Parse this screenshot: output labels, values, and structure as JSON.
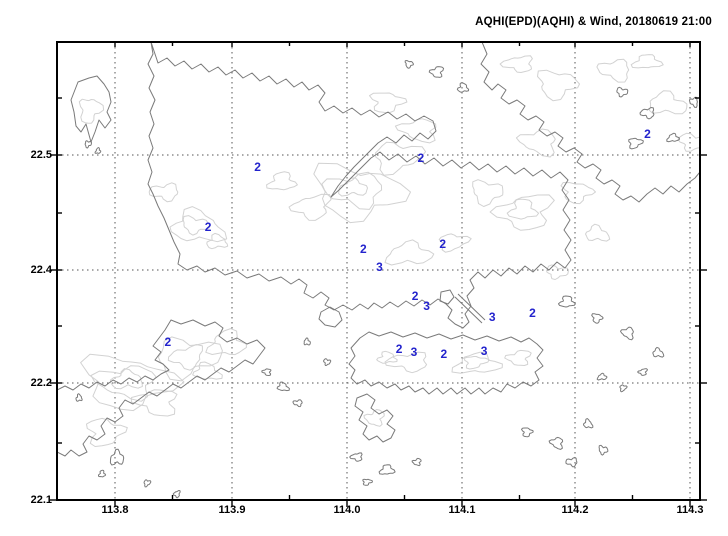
{
  "window": {
    "title": "AQHI(EPD)(AQHI) & Wind, 20180619 21:00"
  },
  "chart_data": {
    "type": "map-contour",
    "title": "AQHI(EPD)(AQHI) & Wind, 20180619 21:00",
    "region": "Hong Kong coastline with terrain contours",
    "datetime_shown": "20180619 21:00",
    "x_axis": {
      "tick_labels": [
        "113.8",
        "113.9",
        "114.0",
        "114.1",
        "114.2",
        "114.3"
      ],
      "range_deg": [
        113.75,
        114.31
      ]
    },
    "y_axis": {
      "tick_labels": [
        "22.5",
        "22.4",
        "22.2",
        "22.1"
      ],
      "range_deg": [
        22.1,
        22.6
      ]
    },
    "grid": "dotted",
    "legend": "none",
    "stations": [
      {
        "lon": 113.924,
        "lat": 22.49,
        "aqhi": "2"
      },
      {
        "lon": 114.066,
        "lat": 22.497,
        "aqhi": "2"
      },
      {
        "lon": 114.263,
        "lat": 22.518,
        "aqhi": "2"
      },
      {
        "lon": 113.881,
        "lat": 22.437,
        "aqhi": "2"
      },
      {
        "lon": 114.016,
        "lat": 22.418,
        "aqhi": "2"
      },
      {
        "lon": 114.03,
        "lat": 22.403,
        "aqhi": "3"
      },
      {
        "lon": 114.085,
        "lat": 22.423,
        "aqhi": "2"
      },
      {
        "lon": 114.061,
        "lat": 22.377,
        "aqhi": "2"
      },
      {
        "lon": 114.071,
        "lat": 22.369,
        "aqhi": "3"
      },
      {
        "lon": 114.128,
        "lat": 22.359,
        "aqhi": "3"
      },
      {
        "lon": 114.163,
        "lat": 22.363,
        "aqhi": "2"
      },
      {
        "lon": 113.846,
        "lat": 22.337,
        "aqhi": "2"
      },
      {
        "lon": 114.047,
        "lat": 22.331,
        "aqhi": "2"
      },
      {
        "lon": 114.06,
        "lat": 22.329,
        "aqhi": "3"
      },
      {
        "lon": 114.086,
        "lat": 22.327,
        "aqhi": "2"
      },
      {
        "lon": 114.121,
        "lat": 22.33,
        "aqhi": "3"
      }
    ],
    "colors": {
      "station_value": "#2323cd",
      "coastline": "#7a7a7a",
      "terrain_contour": "#d2d2d2",
      "grid": "#555555",
      "frame": "#000000",
      "background": "#ffffff"
    }
  }
}
